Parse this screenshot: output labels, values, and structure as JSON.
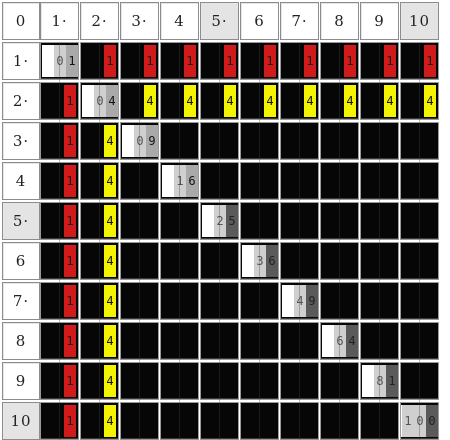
{
  "corner_label": "0",
  "col_headers": [
    "1·",
    "2·",
    "3·",
    "4",
    "5·",
    "6",
    "7·",
    "8",
    "9",
    "10"
  ],
  "row_headers": [
    "1·",
    "2·",
    "3·",
    "4",
    "5·",
    "6",
    "7·",
    "8",
    "9",
    "10"
  ],
  "highlighted_headers": [
    5,
    10
  ],
  "row_tab": {
    "label": "1",
    "color": "#d11a1a"
  },
  "col_tab": {
    "label": "4",
    "color": "#f4f400"
  },
  "diagonal_values": [
    [
      "0",
      "1"
    ],
    [
      "0",
      "4"
    ],
    [
      "0",
      "9"
    ],
    [
      "1",
      "6"
    ],
    [
      "2",
      "5"
    ],
    [
      "3",
      "6"
    ],
    [
      "4",
      "9"
    ],
    [
      "6",
      "4"
    ],
    [
      "8",
      "1"
    ],
    [
      "1",
      "0",
      "0"
    ]
  ]
}
